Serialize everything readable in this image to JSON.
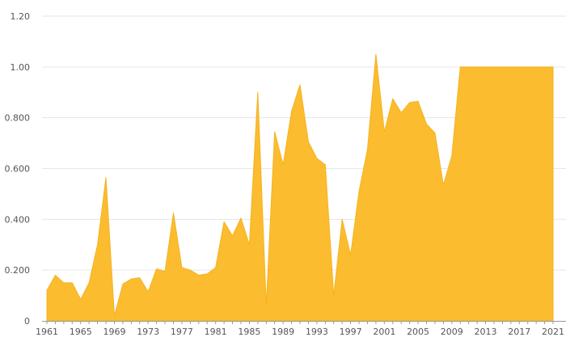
{
  "chart_data": {
    "type": "area",
    "title": "",
    "xlabel": "",
    "ylabel": "",
    "x": [
      1961,
      1962,
      1963,
      1964,
      1965,
      1966,
      1967,
      1968,
      1969,
      1970,
      1971,
      1972,
      1973,
      1974,
      1975,
      1976,
      1977,
      1978,
      1979,
      1980,
      1981,
      1982,
      1983,
      1984,
      1985,
      1986,
      1987,
      1988,
      1989,
      1990,
      1991,
      1992,
      1993,
      1994,
      1995,
      1996,
      1997,
      1998,
      1999,
      2000,
      2001,
      2002,
      2003,
      2004,
      2005,
      2006,
      2007,
      2008,
      2009,
      2010,
      2011,
      2012,
      2013,
      2014,
      2015,
      2016,
      2017,
      2018,
      2019,
      2020,
      2021
    ],
    "series": [
      {
        "values": [
          0.12,
          0.18,
          0.15,
          0.15,
          0.085,
          0.15,
          0.3,
          0.565,
          0.02,
          0.145,
          0.165,
          0.17,
          0.115,
          0.205,
          0.195,
          0.425,
          0.21,
          0.2,
          0.18,
          0.185,
          0.21,
          0.39,
          0.335,
          0.405,
          0.3,
          0.9,
          0.06,
          0.745,
          0.615,
          0.825,
          0.93,
          0.705,
          0.64,
          0.615,
          0.1,
          0.4,
          0.26,
          0.51,
          0.675,
          1.05,
          0.745,
          0.875,
          0.82,
          0.86,
          0.865,
          0.775,
          0.74,
          0.535,
          0.65,
          1.0,
          1.0,
          1.0,
          1.0,
          1.0,
          1.0,
          1.0,
          1.0,
          1.0,
          1.0,
          1.0,
          1.0
        ]
      }
    ],
    "ylim": [
      0,
      1.2
    ],
    "xlim": [
      1961,
      2021
    ],
    "y_ticks": [
      0,
      0.2,
      0.4,
      0.6,
      0.8,
      1.0,
      1.2
    ],
    "y_tick_labels": [
      "0",
      "0.200",
      "0.400",
      "0.600",
      "0.800",
      "1.00",
      "1.20"
    ],
    "x_ticks": [
      1961,
      1965,
      1969,
      1973,
      1977,
      1981,
      1985,
      1989,
      1993,
      1997,
      2001,
      2005,
      2009,
      2013,
      2017,
      2021
    ],
    "grid": "horizontal",
    "colors": {
      "fill": "#fbbc2f",
      "stroke": "#f5b320"
    }
  }
}
